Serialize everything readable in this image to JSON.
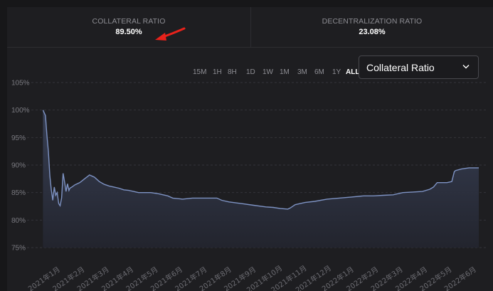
{
  "stats": {
    "collateral": {
      "label": "COLLATERAL RATIO",
      "value": "89.50%"
    },
    "decentralization": {
      "label": "DECENTRALIZATION RATIO",
      "value": "23.08%"
    }
  },
  "annotation_color": "#e8221b",
  "ranges": [
    "15M",
    "1H",
    "8H",
    "1D",
    "1W",
    "1M",
    "3M",
    "6M",
    "1Y",
    "ALL"
  ],
  "active_range": "ALL",
  "metric_select": {
    "value": "Collateral Ratio",
    "icon": "chevron-down-icon"
  },
  "chart_data": {
    "type": "area",
    "title": "",
    "xlabel": "",
    "ylabel": "",
    "ylim": [
      75,
      105
    ],
    "yticks": [
      "75%",
      "80%",
      "85%",
      "90%",
      "95%",
      "100%",
      "105%"
    ],
    "ytick_values": [
      75,
      80,
      85,
      90,
      95,
      100,
      105
    ],
    "xticks": [
      "2021年1月",
      "2021年2月",
      "2021年3月",
      "2021年4月",
      "2021年5月",
      "2021年6月",
      "2021年7月",
      "2021年8月",
      "2021年9月",
      "2021年10月",
      "2021年11月",
      "2021年12月",
      "2022年1月",
      "2022年2月",
      "2022年3月",
      "2022年4月",
      "2022年5月",
      "2022年6月"
    ],
    "xtick_values": [
      0,
      1,
      2,
      3,
      4,
      5,
      6,
      7,
      8,
      9,
      10,
      11,
      12,
      13,
      14,
      15,
      16,
      17
    ],
    "x_unit": "months since 2021年1月",
    "grid": true,
    "line_color": "#7e93c4",
    "fill_color": "#2c3244",
    "series": [
      {
        "name": "",
        "x": [
          -0.1,
          0.0,
          0.06,
          0.12,
          0.18,
          0.24,
          0.3,
          0.36,
          0.42,
          0.48,
          0.54,
          0.6,
          0.66,
          0.72,
          0.78,
          0.84,
          0.9,
          0.96,
          1.0,
          1.08,
          1.2,
          1.4,
          1.6,
          1.8,
          2.0,
          2.2,
          2.4,
          2.6,
          2.8,
          3.0,
          3.2,
          3.4,
          3.6,
          3.8,
          4.0,
          4.3,
          4.6,
          5.0,
          5.2,
          5.6,
          6.0,
          6.6,
          7.0,
          7.2,
          7.5,
          8.0,
          8.5,
          9.0,
          9.3,
          9.6,
          9.9,
          10.0,
          10.2,
          10.6,
          11.0,
          11.5,
          12.0,
          12.5,
          13.0,
          13.4,
          13.8,
          14.2,
          14.6,
          15.0,
          15.4,
          15.7,
          15.85,
          16.0,
          16.4,
          16.6,
          16.7,
          16.75,
          17.0,
          17.3,
          17.7
        ],
        "y": [
          100.0,
          99.0,
          95.5,
          92.5,
          88.0,
          85.5,
          83.6,
          86.0,
          84.5,
          85.0,
          83.0,
          82.6,
          84.0,
          88.5,
          87.0,
          85.2,
          86.6,
          85.4,
          85.8,
          86.0,
          86.4,
          86.8,
          87.5,
          88.2,
          87.8,
          87.0,
          86.5,
          86.2,
          86.0,
          85.8,
          85.5,
          85.4,
          85.2,
          85.0,
          85.0,
          85.0,
          84.8,
          84.4,
          84.0,
          83.8,
          84.0,
          84.0,
          84.0,
          83.6,
          83.3,
          83.0,
          82.7,
          82.4,
          82.3,
          82.1,
          82.0,
          82.2,
          82.8,
          83.2,
          83.4,
          83.8,
          84.0,
          84.2,
          84.4,
          84.4,
          84.5,
          84.6,
          85.0,
          85.1,
          85.2,
          85.6,
          86.0,
          86.8,
          86.8,
          87.0,
          88.8,
          89.0,
          89.3,
          89.5,
          89.5
        ]
      }
    ]
  }
}
